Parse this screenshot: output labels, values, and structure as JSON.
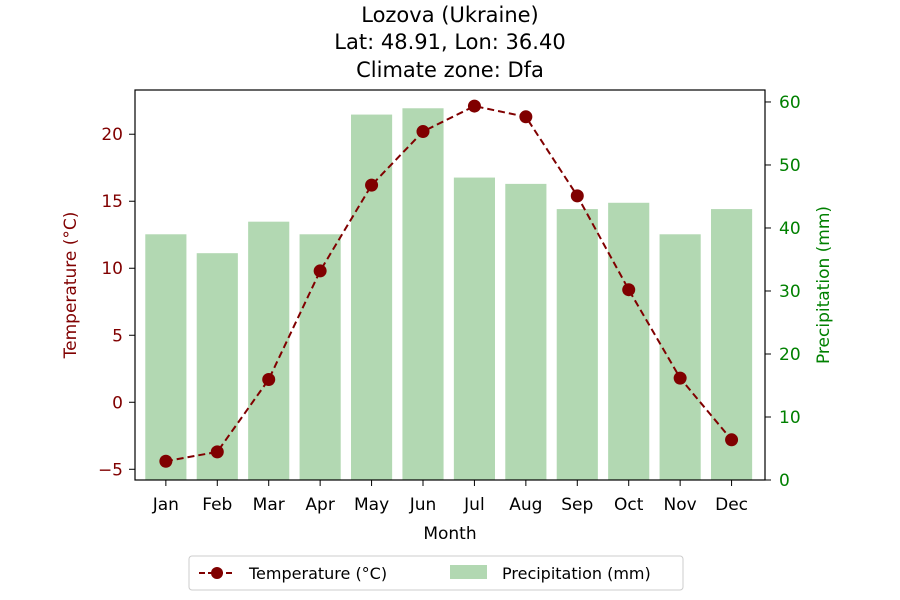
{
  "chart_data": {
    "type": "bar+line",
    "title_lines": [
      "Lozova (Ukraine)",
      "Lat: 48.91, Lon: 36.40",
      "Climate zone: Dfa"
    ],
    "xlabel": "Month",
    "categories": [
      "Jan",
      "Feb",
      "Mar",
      "Apr",
      "May",
      "Jun",
      "Jul",
      "Aug",
      "Sep",
      "Oct",
      "Nov",
      "Dec"
    ],
    "temperature": {
      "name": "Temperature (°C)",
      "ylabel": "Temperature (°C)",
      "values": [
        -4.4,
        -3.7,
        1.7,
        9.8,
        16.2,
        20.2,
        22.1,
        21.3,
        15.4,
        8.4,
        1.8,
        -2.8
      ],
      "ylim": [
        -5.8,
        23.3
      ],
      "yticks": [
        -5,
        0,
        5,
        10,
        15,
        20
      ],
      "ytick_labels": [
        "−5",
        "0",
        "5",
        "10",
        "15",
        "20"
      ],
      "color": "#800000"
    },
    "precipitation": {
      "name": "Precipitation (mm)",
      "ylabel": "Precipitation (mm)",
      "values": [
        39,
        36,
        41,
        39,
        58,
        59,
        48,
        47,
        43,
        44,
        39,
        43
      ],
      "ylim": [
        0,
        61.9
      ],
      "yticks": [
        0,
        10,
        20,
        30,
        40,
        50,
        60
      ],
      "ytick_labels": [
        "0",
        "10",
        "20",
        "30",
        "40",
        "50",
        "60"
      ],
      "bar_color": "#b2d8b2",
      "axis_color": "#008000"
    },
    "legend_position": "bottom-center"
  }
}
